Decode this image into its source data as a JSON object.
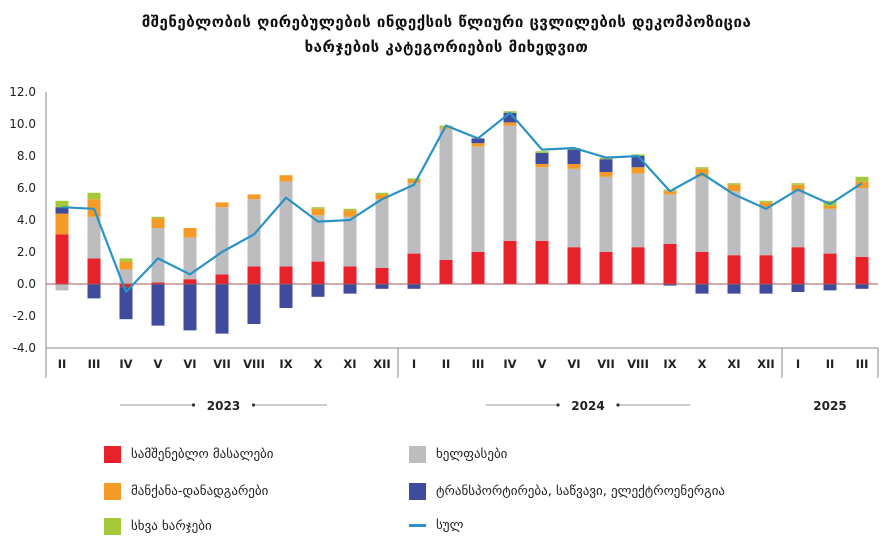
{
  "title_lines": [
    "მშენებლობის ღირებულების ინდექსის წლიური ცვლილების დეკომპოზიცია",
    "ხარჯების კატეგორიების მიხედვით"
  ],
  "chart_data": {
    "type": "bar",
    "stacked": true,
    "ylim": [
      -4.0,
      12.0
    ],
    "yticks": [
      "12.0",
      "10.0",
      "8.0",
      "6.0",
      "4.0",
      "2.0",
      "0.0",
      "-2.0",
      "-4.0"
    ],
    "categories": [
      "II",
      "III",
      "IV",
      "V",
      "VI",
      "VII",
      "VIII",
      "IX",
      "X",
      "XI",
      "XII",
      "I",
      "II",
      "III",
      "IV",
      "V",
      "VI",
      "VII",
      "VIII",
      "IX",
      "X",
      "XI",
      "XII",
      "I",
      "II",
      "III"
    ],
    "year_groups": [
      {
        "label": "2023",
        "start": 0,
        "end": 10
      },
      {
        "label": "2024",
        "start": 11,
        "end": 22
      },
      {
        "label": "2025",
        "start": 23,
        "end": 25
      }
    ],
    "series": [
      {
        "name": "სამშენებლო მასალები",
        "color": "#e8212a",
        "values": [
          3.1,
          1.6,
          -0.2,
          0.1,
          0.3,
          0.6,
          1.1,
          1.1,
          1.4,
          1.1,
          1.0,
          1.9,
          1.5,
          2.0,
          2.7,
          2.7,
          2.3,
          2.0,
          2.3,
          2.5,
          2.0,
          1.8,
          1.8,
          2.3,
          1.9,
          1.7
        ]
      },
      {
        "name": "ხელფასები",
        "color": "#bdbcbe",
        "values": [
          -0.4,
          2.6,
          0.9,
          3.4,
          2.6,
          4.2,
          4.2,
          5.3,
          2.9,
          3.1,
          4.3,
          4.4,
          8.2,
          6.6,
          7.2,
          4.6,
          4.9,
          4.7,
          4.6,
          3.1,
          4.7,
          4.0,
          3.0,
          3.5,
          2.8,
          4.3
        ]
      },
      {
        "name": "მანქანა-დანადგარები",
        "color": "#f59a27",
        "values": [
          1.3,
          1.1,
          0.5,
          0.6,
          0.6,
          0.3,
          0.3,
          0.4,
          0.4,
          0.4,
          0.3,
          0.2,
          0.1,
          0.2,
          0.2,
          0.2,
          0.3,
          0.3,
          0.4,
          0.2,
          0.5,
          0.4,
          0.3,
          0.4,
          0.2,
          0.4
        ]
      },
      {
        "name": "ტრანსპორტირება, საწვავი, ელექტროენერგია",
        "color": "#3f4b9d",
        "values": [
          0.4,
          -0.9,
          -2.0,
          -2.6,
          -2.9,
          -3.1,
          -2.5,
          -1.5,
          -0.8,
          -0.6,
          -0.3,
          -0.3,
          0.0,
          0.3,
          0.6,
          0.7,
          0.9,
          0.8,
          0.7,
          -0.1,
          -0.6,
          -0.6,
          -0.6,
          -0.5,
          -0.4,
          -0.3
        ]
      },
      {
        "name": "სხვა ხარჯები",
        "color": "#a3c93a",
        "values": [
          0.4,
          0.4,
          0.2,
          0.1,
          0.0,
          0.0,
          0.0,
          0.0,
          0.1,
          0.1,
          0.1,
          0.1,
          0.1,
          0.0,
          0.1,
          0.1,
          0.1,
          0.1,
          0.1,
          0.1,
          0.1,
          0.1,
          0.1,
          0.1,
          0.3,
          0.3
        ]
      }
    ],
    "line": {
      "name": "სულ",
      "color": "#2a93c5",
      "values": [
        4.8,
        4.7,
        -0.5,
        1.6,
        0.6,
        2.0,
        3.1,
        5.4,
        3.9,
        4.0,
        5.3,
        6.2,
        9.9,
        9.1,
        10.7,
        8.4,
        8.5,
        7.9,
        8.0,
        5.8,
        6.9,
        5.6,
        4.7,
        5.9,
        5.0,
        6.3
      ]
    }
  }
}
